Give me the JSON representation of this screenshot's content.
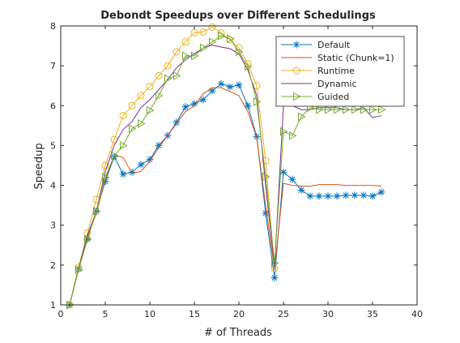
{
  "chart_data": {
    "type": "line",
    "title": "Debondt Speedups over Different Schedulings",
    "xlabel": "# of Threads",
    "ylabel": "Speedup",
    "xlim": [
      0,
      40
    ],
    "ylim": [
      1,
      8
    ],
    "xticks": [
      0,
      5,
      10,
      15,
      20,
      25,
      30,
      35,
      40
    ],
    "yticks": [
      1,
      2,
      3,
      4,
      5,
      6,
      7,
      8
    ],
    "grid": false,
    "legend_position": "top-right",
    "x": [
      1,
      2,
      3,
      4,
      5,
      6,
      7,
      8,
      9,
      10,
      11,
      12,
      13,
      14,
      15,
      16,
      17,
      18,
      19,
      20,
      21,
      22,
      23,
      24,
      25,
      26,
      27,
      28,
      29,
      30,
      31,
      32,
      33,
      34,
      35,
      36
    ],
    "series": [
      {
        "name": "Default",
        "color": "#0072BD",
        "marker": "asterisk",
        "values": [
          1.0,
          1.9,
          2.65,
          3.35,
          4.1,
          4.72,
          4.28,
          4.33,
          4.52,
          4.65,
          5.0,
          5.25,
          5.58,
          5.97,
          6.05,
          6.15,
          6.37,
          6.55,
          6.47,
          6.52,
          6.0,
          5.22,
          3.3,
          1.68,
          4.33,
          4.15,
          3.88,
          3.73,
          3.73,
          3.73,
          3.73,
          3.75,
          3.75,
          3.75,
          3.73,
          3.83
        ]
      },
      {
        "name": "Static (Chunk=1)",
        "color": "#D95319",
        "marker": "none",
        "values": [
          1.0,
          1.95,
          2.7,
          3.3,
          4.15,
          4.75,
          4.7,
          4.3,
          4.35,
          4.6,
          4.95,
          5.25,
          5.55,
          5.85,
          6.0,
          6.3,
          6.45,
          6.45,
          6.35,
          6.25,
          5.85,
          5.2,
          3.5,
          1.9,
          4.05,
          4.0,
          3.98,
          3.98,
          4.02,
          4.02,
          4.02,
          4.0,
          4.0,
          4.0,
          4.0,
          3.98
        ]
      },
      {
        "name": "Runtime",
        "color": "#EDB120",
        "marker": "circle",
        "values": [
          1.0,
          1.95,
          2.8,
          3.65,
          4.5,
          5.15,
          5.75,
          6.0,
          6.25,
          6.48,
          6.75,
          7.0,
          7.35,
          7.6,
          7.83,
          7.85,
          7.97,
          7.83,
          7.65,
          7.45,
          7.05,
          6.5,
          4.62,
          1.92,
          null,
          null,
          null,
          null,
          null,
          null,
          null,
          null,
          null,
          null,
          null,
          null
        ]
      },
      {
        "name": "Dynamic",
        "color": "#7E2F8E",
        "marker": "none",
        "values": [
          1.0,
          1.9,
          2.75,
          3.35,
          4.35,
          5.0,
          5.4,
          5.6,
          5.95,
          6.15,
          6.4,
          6.65,
          6.95,
          7.15,
          7.3,
          7.45,
          7.52,
          7.47,
          7.43,
          7.3,
          6.9,
          6.25,
          4.0,
          1.95,
          6.0,
          6.0,
          5.9,
          5.9,
          5.95,
          5.95,
          5.95,
          5.9,
          5.9,
          5.95,
          5.7,
          5.75
        ]
      },
      {
        "name": "Guided",
        "color": "#77AC30",
        "marker": "triangle-right",
        "values": [
          1.0,
          1.88,
          2.65,
          3.35,
          4.2,
          4.75,
          5.0,
          5.42,
          5.55,
          5.88,
          6.25,
          6.68,
          6.75,
          7.25,
          7.25,
          7.45,
          7.6,
          7.75,
          7.68,
          7.35,
          6.98,
          6.1,
          4.22,
          2.05,
          5.35,
          5.25,
          5.72,
          5.95,
          5.9,
          5.9,
          5.9,
          5.9,
          5.9,
          5.9,
          5.9,
          5.9
        ]
      }
    ]
  }
}
